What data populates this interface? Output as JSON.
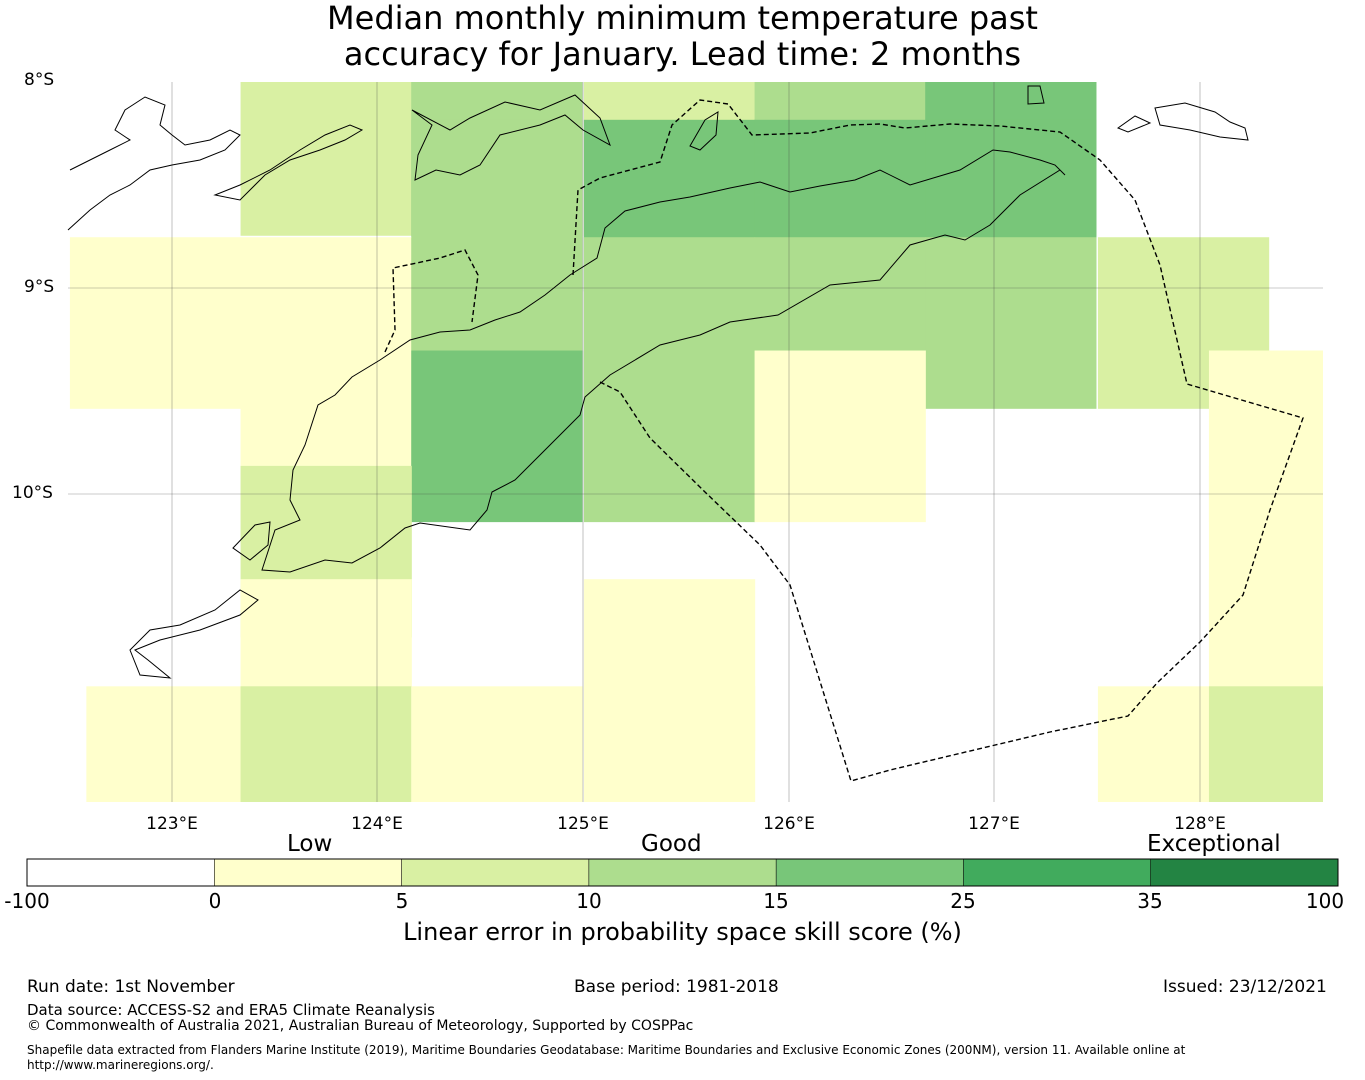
{
  "title": {
    "line1": "Median monthly minimum temperature past",
    "line2": "accuracy for January. Lead time: 2 months"
  },
  "axes": {
    "lat_labels": [
      "8°S",
      "9°S",
      "10°S"
    ],
    "lon_labels": [
      "123°E",
      "124°E",
      "125°E",
      "126°E",
      "127°E",
      "128°E"
    ],
    "lon_range": [
      122.5,
      128.6
    ],
    "lat_range": [
      -11.5,
      -8.0
    ]
  },
  "chart_data": {
    "type": "heatmap",
    "cell_size_deg": 0.833,
    "legend": {
      "bounds": [
        -100,
        0,
        5,
        10,
        15,
        25,
        35,
        100
      ],
      "colors": [
        "#ffffff",
        "#ffffcc",
        "#d9f0a3",
        "#addd8e",
        "#78c679",
        "#41ab5d",
        "#238443"
      ],
      "categories": [
        "Low",
        "Good",
        "Exceptional"
      ],
      "tick_labels": [
        "-100",
        "0",
        "5",
        "10",
        "15",
        "25",
        "35",
        "100"
      ],
      "label": "Linear error in probability space skill score (%)"
    },
    "cells": [
      {
        "lon": 122.92,
        "lat": -8.33,
        "value": null
      },
      {
        "lon": 123.75,
        "lat": -8.33,
        "value": 7.5
      },
      {
        "lon": 124.58,
        "lat": -8.33,
        "value": 12.5
      },
      {
        "lon": 125.42,
        "lat": -8.33,
        "value": 7.5
      },
      {
        "lon": 126.25,
        "lat": -8.33,
        "value": 12.5
      },
      {
        "lon": 127.08,
        "lat": -8.33,
        "value": 20
      },
      {
        "lon": 124.58,
        "lat": -8.6,
        "value": 12.5
      },
      {
        "lon": 125.42,
        "lat": -8.6,
        "value": 20
      },
      {
        "lon": 126.25,
        "lat": -8.6,
        "value": 20
      },
      {
        "lon": 127.08,
        "lat": -8.6,
        "value": 20
      },
      {
        "lon": 122.92,
        "lat": -9.17,
        "value": 2.5
      },
      {
        "lon": 123.75,
        "lat": -9.17,
        "value": 2.5
      },
      {
        "lon": 124.58,
        "lat": -9.17,
        "value": 12.5
      },
      {
        "lon": 125.42,
        "lat": -9.17,
        "value": 12.5
      },
      {
        "lon": 126.25,
        "lat": -9.17,
        "value": 12.5
      },
      {
        "lon": 127.08,
        "lat": -9.17,
        "value": 12.5
      },
      {
        "lon": 127.92,
        "lat": -9.17,
        "value": 7.5
      },
      {
        "lon": 123.75,
        "lat": -9.72,
        "value": 2.5
      },
      {
        "lon": 124.58,
        "lat": -9.72,
        "value": 20
      },
      {
        "lon": 125.42,
        "lat": -9.72,
        "value": 12.5
      },
      {
        "lon": 126.25,
        "lat": -9.72,
        "value": 2.5
      },
      {
        "lon": 128.46,
        "lat": -9.72,
        "value": 2.5
      },
      {
        "lon": 123.75,
        "lat": -10.28,
        "value": 7.5
      },
      {
        "lon": 128.46,
        "lat": -10.28,
        "value": 2.5
      },
      {
        "lon": 123.75,
        "lat": -10.83,
        "value": 2.5
      },
      {
        "lon": 125.42,
        "lat": -10.83,
        "value": 2.5
      },
      {
        "lon": 128.46,
        "lat": -10.83,
        "value": 2.5
      },
      {
        "lon": 123.0,
        "lat": -11.35,
        "value": 2.5
      },
      {
        "lon": 123.75,
        "lat": -11.35,
        "value": 7.5
      },
      {
        "lon": 124.58,
        "lat": -11.35,
        "value": 2.5
      },
      {
        "lon": 125.42,
        "lat": -11.35,
        "value": 2.5
      },
      {
        "lon": 127.92,
        "lat": -11.35,
        "value": 2.5
      },
      {
        "lon": 128.46,
        "lat": -11.35,
        "value": 7.5
      }
    ]
  },
  "footer": {
    "run_date": "Run date: 1st November",
    "base_period": "Base period: 1981-2018",
    "issued": "Issued: 23/12/2021",
    "data_source": "Data source: ACCESS-S2 and ERA5 Climate Reanalysis",
    "copyright": "© Commonwealth of Australia 2021, Australian Bureau of Meteorology, Supported by COSPPac",
    "shapefile": "Shapefile data extracted from Flanders Marine Institute (2019), Maritime Boundaries Geodatabase: Maritime Boundaries and Exclusive Economic Zones (200NM), version 11. Available online at http://www.marineregions.org/."
  }
}
